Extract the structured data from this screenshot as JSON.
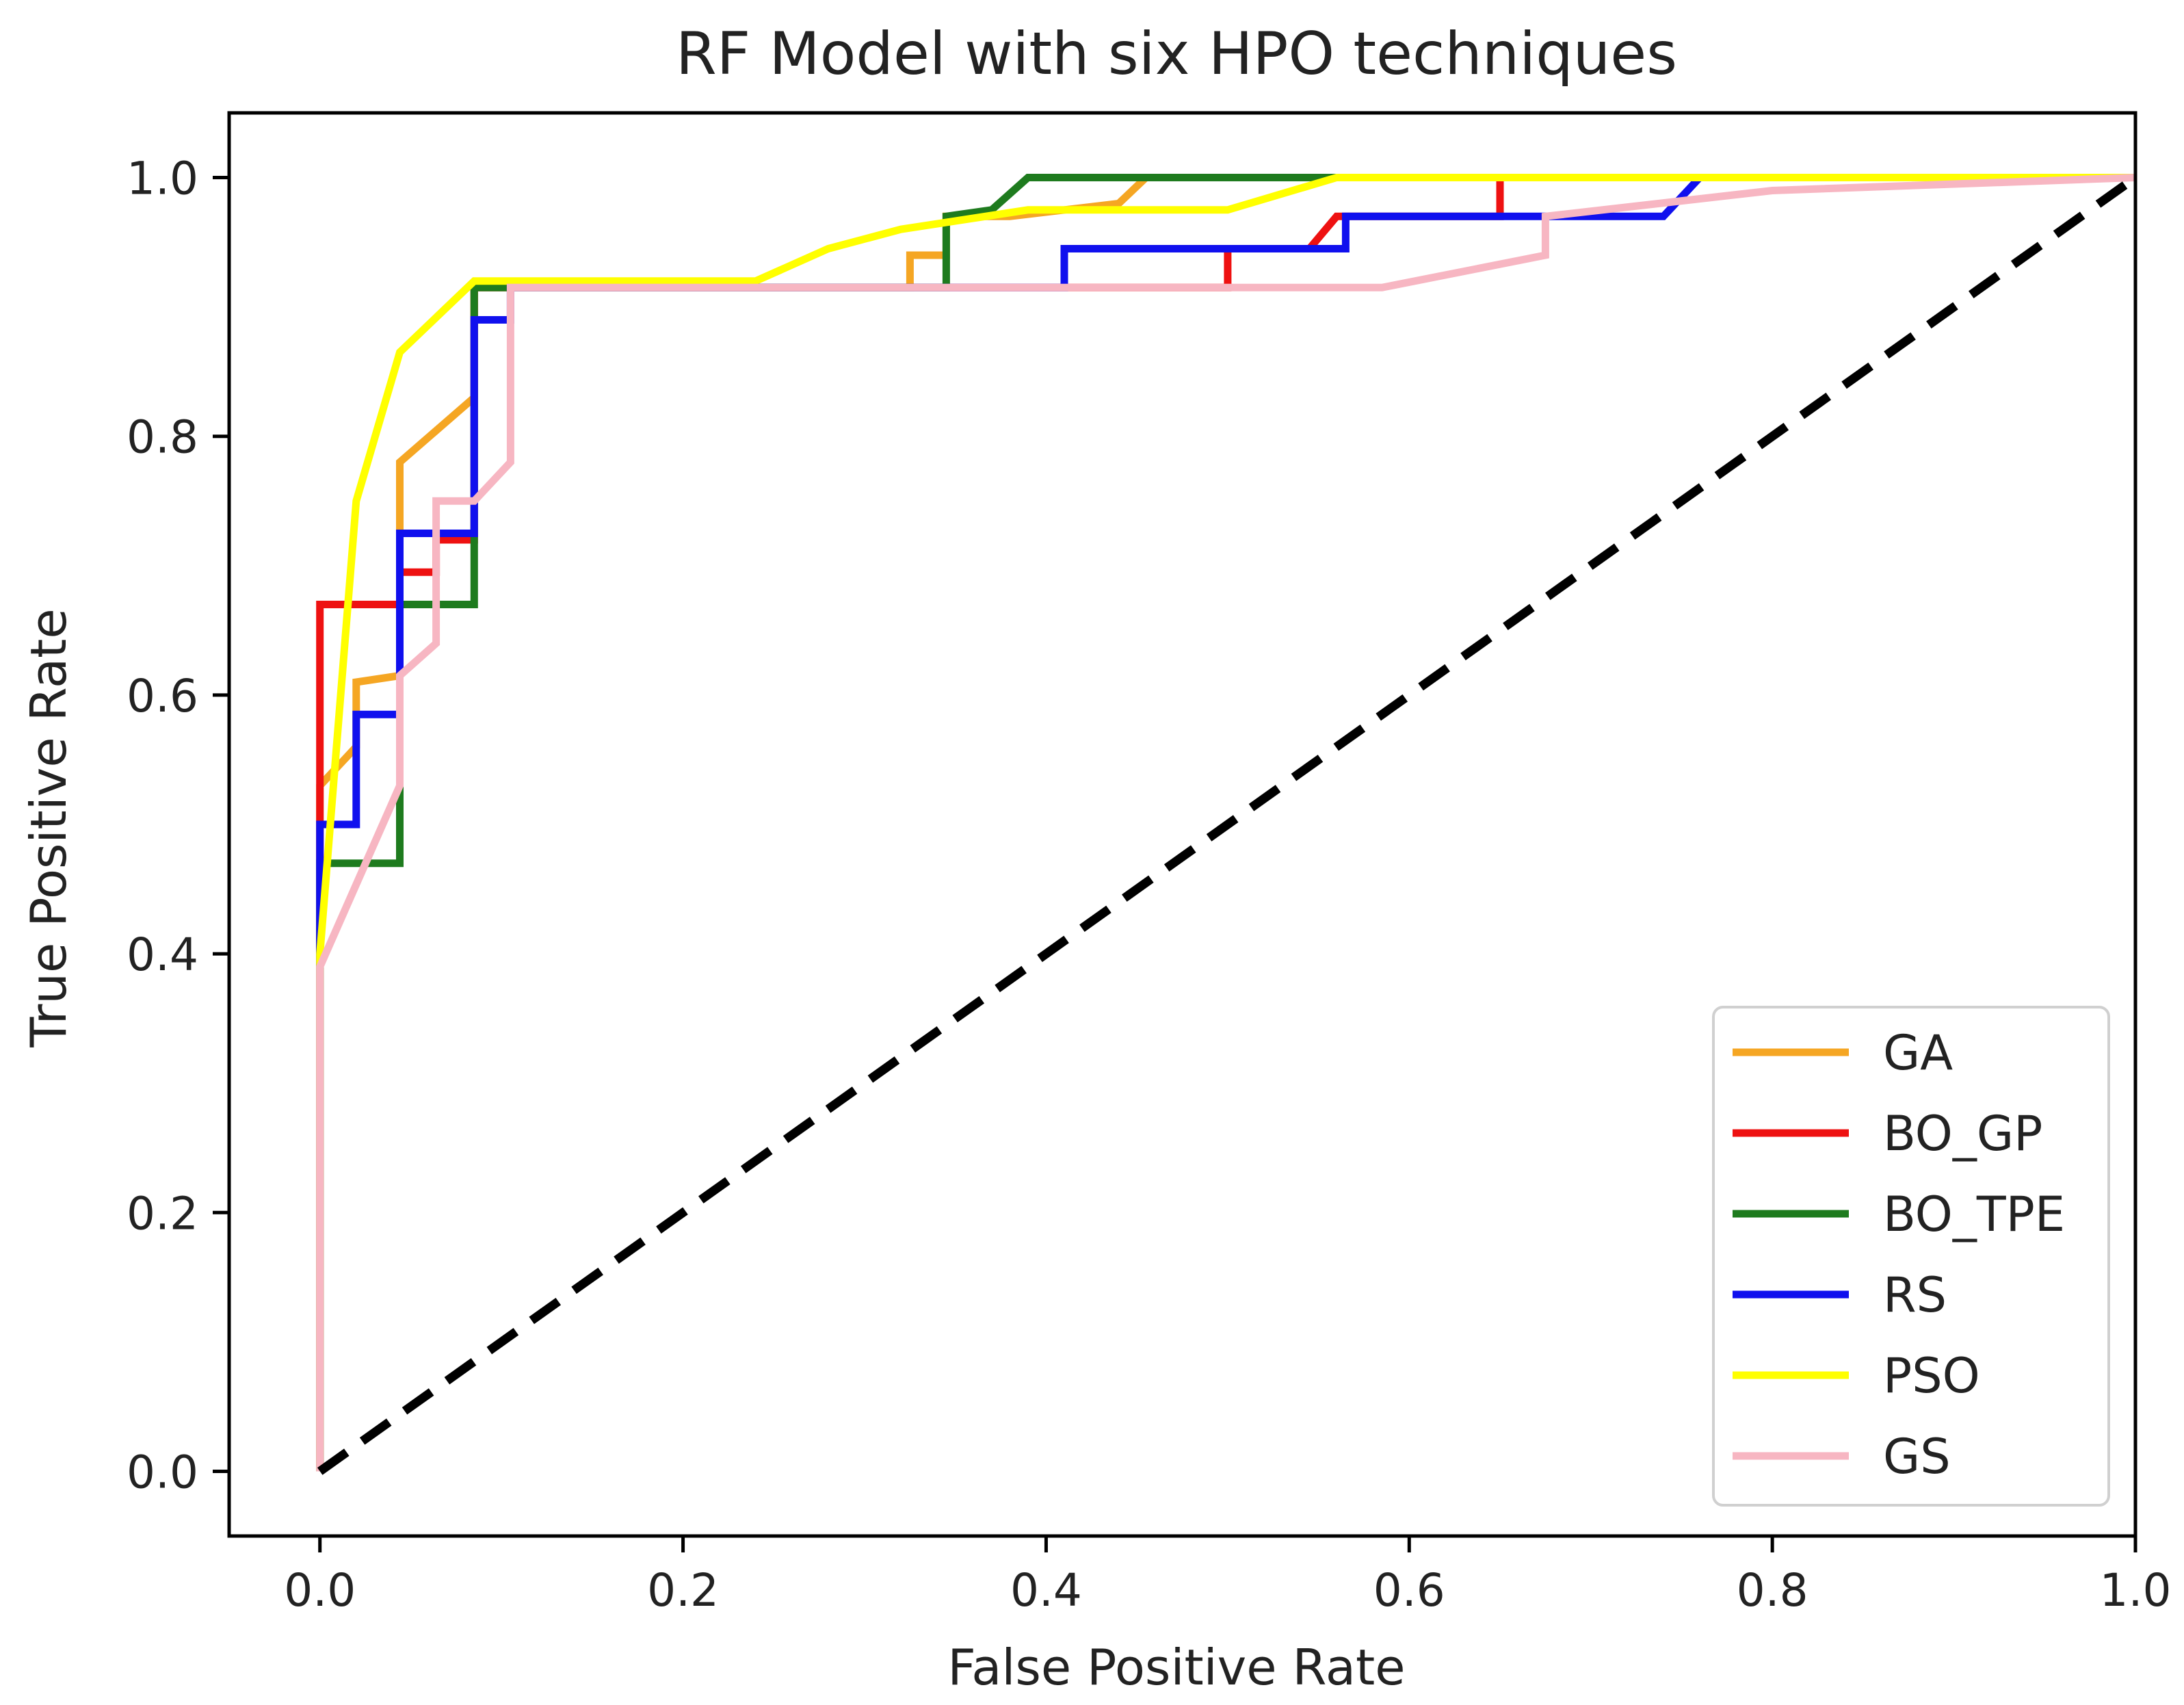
{
  "chart_data": {
    "type": "line",
    "title": "RF Model with six HPO techniques",
    "xlabel": "False Positive Rate",
    "ylabel": "True Positive Rate",
    "xlim": [
      -0.05,
      1.0
    ],
    "ylim": [
      -0.05,
      1.05
    ],
    "xticks": [
      0.0,
      0.2,
      0.4,
      0.6,
      0.8,
      1.0
    ],
    "xtick_labels": [
      "0.0",
      "0.2",
      "0.4",
      "0.6",
      "0.8",
      "1.0"
    ],
    "yticks": [
      0.0,
      0.2,
      0.4,
      0.6,
      0.8,
      1.0
    ],
    "ytick_labels": [
      "0.0",
      "0.2",
      "0.4",
      "0.6",
      "0.8",
      "1.0"
    ],
    "grid": false,
    "legend_position": "bottom-right",
    "series": [
      {
        "name": "GA",
        "color": "#f5a623",
        "x": [
          0.0,
          0.0,
          0.02,
          0.02,
          0.044,
          0.044,
          0.085,
          0.085,
          0.105,
          0.325,
          0.325,
          0.345,
          0.345,
          0.38,
          0.44,
          0.455,
          1.0
        ],
        "y": [
          0.0,
          0.53,
          0.56,
          0.61,
          0.615,
          0.78,
          0.83,
          0.915,
          0.915,
          0.915,
          0.94,
          0.94,
          0.97,
          0.97,
          0.98,
          1.0,
          1.0
        ]
      },
      {
        "name": "BO_GP",
        "color": "#ee1111",
        "x": [
          0.0,
          0.0,
          0.044,
          0.044,
          0.064,
          0.064,
          0.085,
          0.085,
          0.105,
          0.5,
          0.5,
          0.545,
          0.56,
          0.65,
          0.65,
          1.0
        ],
        "y": [
          0.0,
          0.67,
          0.67,
          0.695,
          0.695,
          0.72,
          0.72,
          0.915,
          0.915,
          0.915,
          0.945,
          0.945,
          0.97,
          0.97,
          1.0,
          1.0
        ]
      },
      {
        "name": "BO_TPE",
        "color": "#1e7b1e",
        "x": [
          0.0,
          0.0,
          0.044,
          0.044,
          0.064,
          0.085,
          0.085,
          0.345,
          0.345,
          0.37,
          0.39,
          0.56,
          1.0
        ],
        "y": [
          0.0,
          0.47,
          0.47,
          0.67,
          0.67,
          0.67,
          0.915,
          0.915,
          0.97,
          0.975,
          1.0,
          1.0,
          1.0
        ]
      },
      {
        "name": "RS",
        "color": "#1010ee",
        "x": [
          0.0,
          0.0,
          0.02,
          0.02,
          0.044,
          0.044,
          0.085,
          0.085,
          0.105,
          0.105,
          0.41,
          0.41,
          0.565,
          0.565,
          0.74,
          0.76,
          1.0
        ],
        "y": [
          0.0,
          0.5,
          0.5,
          0.585,
          0.585,
          0.725,
          0.725,
          0.89,
          0.89,
          0.915,
          0.915,
          0.945,
          0.945,
          0.97,
          0.97,
          1.0,
          1.0
        ]
      },
      {
        "name": "PSO",
        "color": "#ffff00",
        "x": [
          0.0,
          0.0,
          0.02,
          0.044,
          0.085,
          0.105,
          0.24,
          0.28,
          0.32,
          0.39,
          0.5,
          0.56,
          1.0
        ],
        "y": [
          0.0,
          0.4,
          0.75,
          0.865,
          0.92,
          0.92,
          0.92,
          0.945,
          0.96,
          0.975,
          0.975,
          1.0,
          1.0
        ]
      },
      {
        "name": "GS",
        "color": "#f7b6c2",
        "x": [
          0.0,
          0.0,
          0.044,
          0.044,
          0.064,
          0.064,
          0.085,
          0.105,
          0.105,
          0.585,
          0.675,
          0.675,
          0.8,
          1.0
        ],
        "y": [
          0.0,
          0.39,
          0.53,
          0.615,
          0.64,
          0.75,
          0.75,
          0.78,
          0.915,
          0.915,
          0.94,
          0.97,
          0.99,
          1.0
        ]
      }
    ],
    "reference_line": {
      "style": "dashed",
      "color": "#000000",
      "x": [
        0.0,
        1.0
      ],
      "y": [
        0.0,
        1.0
      ]
    }
  }
}
